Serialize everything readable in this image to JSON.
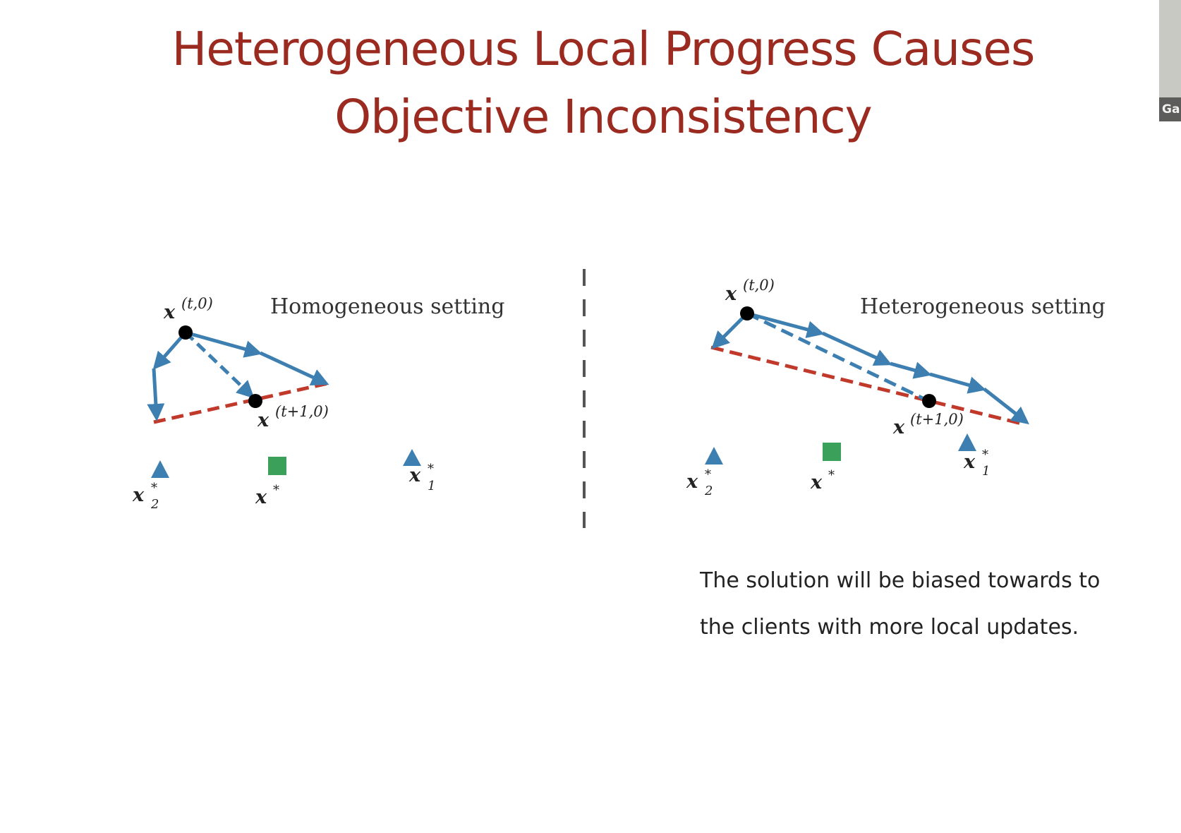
{
  "slide": {
    "title_line1": "Heterogeneous Local Progress Causes",
    "title_line2": "Objective Inconsistency"
  },
  "left_panel": {
    "setting_label": "Homogeneous setting",
    "start_point_label": "x",
    "start_point_sup": "(t,0)",
    "end_point_label": "x",
    "end_point_sup": "(t+1,0)",
    "optimum_label": "x",
    "optimum_sup": "*",
    "client1_label": "x",
    "client1_sup": "*",
    "client1_sub": "1",
    "client2_label": "x",
    "client2_sup": "*",
    "client2_sub": "2"
  },
  "right_panel": {
    "setting_label": "Heterogeneous setting",
    "start_point_label": "x",
    "start_point_sup": "(t,0)",
    "end_point_label": "x",
    "end_point_sup": "(t+1,0)",
    "optimum_label": "x",
    "optimum_sup": "*",
    "client1_label": "x",
    "client1_sup": "*",
    "client1_sub": "1",
    "client2_label": "x",
    "client2_sup": "*",
    "client2_sub": "2"
  },
  "caption": {
    "line1": "The solution will be biased towards to",
    "line2": "the clients with more local updates."
  },
  "video_thumbnail": {
    "label": "Ga"
  },
  "colors": {
    "title": "#9b2a20",
    "update_arrow": "#3d7fb0",
    "average_line": "#c0392b",
    "optimum_marker": "#3aa05a",
    "client_marker": "#3d7fb0",
    "point": "#000000"
  }
}
